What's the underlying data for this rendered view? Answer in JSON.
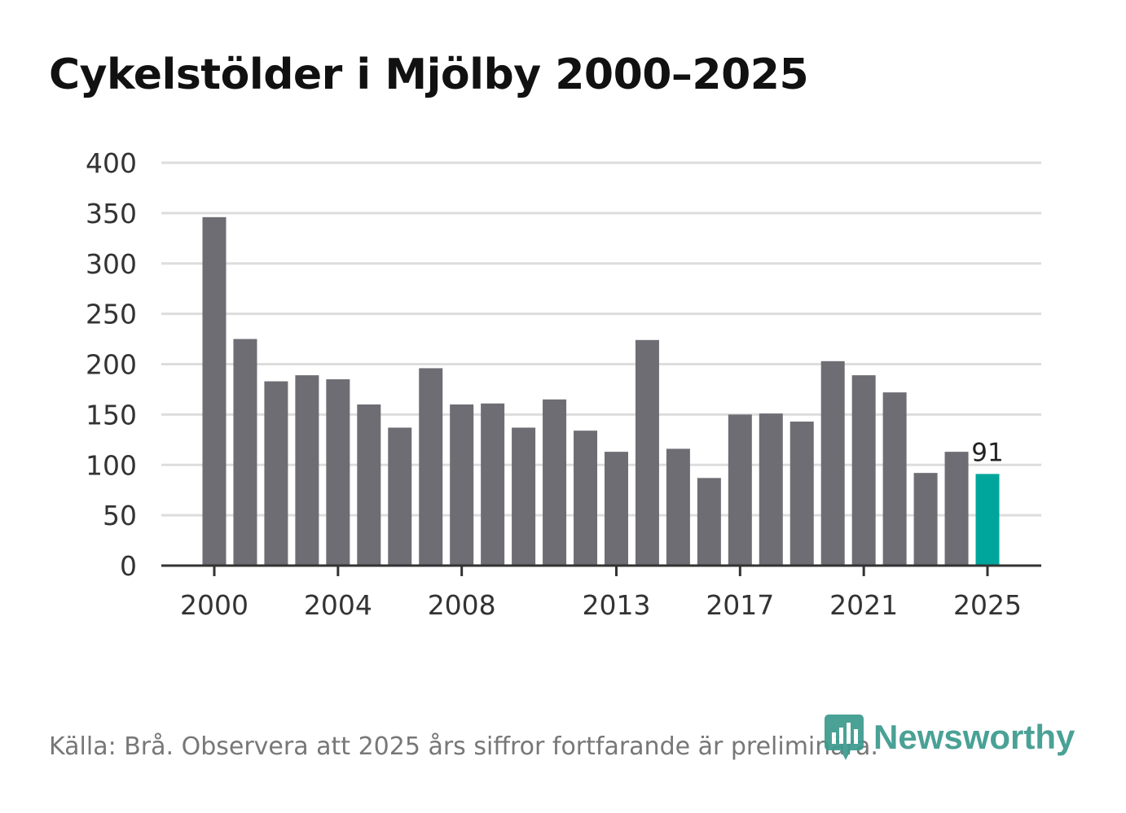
{
  "chart_data": {
    "type": "bar",
    "title": "Cykelstölder i Mjölby 2000–2025",
    "xlabel": "",
    "ylabel": "",
    "ylim": [
      0,
      400
    ],
    "yticks": [
      0,
      50,
      100,
      150,
      200,
      250,
      300,
      350,
      400
    ],
    "xtick_labels": [
      "2000",
      "2004",
      "2008",
      "2013",
      "2017",
      "2021",
      "2025"
    ],
    "categories": [
      "2000",
      "2001",
      "2002",
      "2003",
      "2004",
      "2005",
      "2006",
      "2007",
      "2008",
      "2009",
      "2010",
      "2011",
      "2012",
      "2013",
      "2014",
      "2015",
      "2016",
      "2017",
      "2018",
      "2019",
      "2020",
      "2021",
      "2022",
      "2023",
      "2024",
      "2025"
    ],
    "values": [
      346,
      225,
      183,
      189,
      185,
      160,
      137,
      196,
      160,
      161,
      137,
      165,
      134,
      113,
      224,
      116,
      87,
      150,
      151,
      143,
      203,
      189,
      172,
      92,
      113,
      91
    ],
    "highlight_category": "2025",
    "annotations": [
      {
        "category": "2025",
        "text": "91"
      }
    ],
    "grid": true
  },
  "footer": {
    "source": "Källa: Brå. Observera att 2025 års siffror fortfarande är preliminära.",
    "brand": "Newsworthy"
  },
  "colors": {
    "bar": "#6e6d74",
    "highlight": "#00a69c",
    "grid": "#dddddd",
    "axis": "#333333",
    "brand": "#3d9a8e"
  }
}
